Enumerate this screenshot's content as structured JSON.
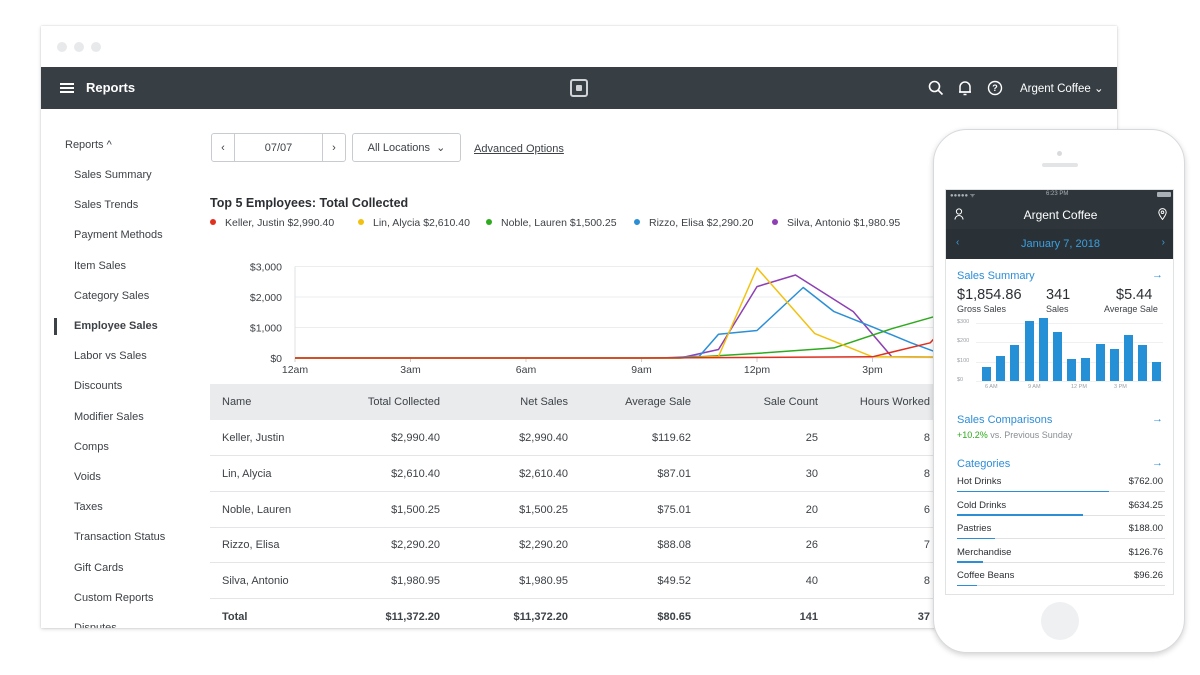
{
  "app": {
    "title": "Reports",
    "account": "Argent Coffee"
  },
  "sidebar": {
    "heading": "Reports ^",
    "items": [
      {
        "label": "Sales Summary"
      },
      {
        "label": "Sales Trends"
      },
      {
        "label": "Payment Methods"
      },
      {
        "label": "Item Sales"
      },
      {
        "label": "Category Sales"
      },
      {
        "label": "Employee Sales",
        "active": true
      },
      {
        "label": "Labor vs Sales"
      },
      {
        "label": "Discounts"
      },
      {
        "label": "Modifier Sales"
      },
      {
        "label": "Comps"
      },
      {
        "label": "Voids"
      },
      {
        "label": "Taxes"
      },
      {
        "label": "Transaction Status"
      },
      {
        "label": "Gift Cards"
      },
      {
        "label": "Custom Reports"
      },
      {
        "label": "Disputes"
      }
    ]
  },
  "filters": {
    "date": "07/07",
    "prev_glyph": "‹",
    "next_glyph": "›",
    "location": "All Locations",
    "advanced": "Advanced Options"
  },
  "chart_data": {
    "type": "line",
    "title": "Top 5 Employees: Total Collected",
    "x": [
      "12am",
      "3am",
      "6am",
      "9am",
      "12pm",
      "3pm",
      "6pm"
    ],
    "y_ticks": [
      "$3,000",
      "$2,000",
      "$1,000",
      "$0"
    ],
    "ylim": [
      0,
      3000
    ],
    "xlim_hours": [
      0,
      19.5
    ],
    "series": [
      {
        "name": "Keller, Justin $2,990.40",
        "color": "#e0301e",
        "points": [
          [
            0,
            0
          ],
          [
            9,
            0
          ],
          [
            15,
            40
          ],
          [
            16.5,
            500
          ],
          [
            18.3,
            2990
          ],
          [
            19.5,
            0
          ]
        ]
      },
      {
        "name": "Lin, Alycia $2,610.40",
        "color": "#f2c10f",
        "points": [
          [
            0,
            0
          ],
          [
            10,
            0
          ],
          [
            11,
            50
          ],
          [
            12,
            2950
          ],
          [
            13.5,
            800
          ],
          [
            15,
            40
          ],
          [
            19.5,
            0
          ]
        ]
      },
      {
        "name": "Noble, Lauren $1,500.25",
        "color": "#2faa1e",
        "points": [
          [
            0,
            0
          ],
          [
            10,
            0
          ],
          [
            12,
            150
          ],
          [
            14,
            330
          ],
          [
            15.5,
            960
          ],
          [
            17,
            1500
          ],
          [
            19,
            450
          ],
          [
            19.5,
            450
          ]
        ]
      },
      {
        "name": "Rizzo, Elisa $2,290.20",
        "color": "#2b8fd6",
        "points": [
          [
            0,
            0
          ],
          [
            9.5,
            0
          ],
          [
            10.5,
            60
          ],
          [
            11,
            780
          ],
          [
            12,
            900
          ],
          [
            13.2,
            2310
          ],
          [
            14,
            1520
          ],
          [
            15,
            1020
          ],
          [
            16,
            500
          ],
          [
            17,
            30
          ],
          [
            19.5,
            0
          ]
        ]
      },
      {
        "name": "Silva, Antonio $1,980.95",
        "color": "#8d3fb3",
        "points": [
          [
            0,
            0
          ],
          [
            10,
            0
          ],
          [
            11,
            280
          ],
          [
            12,
            2340
          ],
          [
            13,
            2720
          ],
          [
            14.5,
            1520
          ],
          [
            15.5,
            40
          ],
          [
            19.5,
            0
          ]
        ]
      }
    ]
  },
  "table": {
    "columns": [
      "Name",
      "Total Collected",
      "Net Sales",
      "Average Sale",
      "Sale Count",
      "Hours Worked"
    ],
    "rows": [
      [
        "Keller, Justin",
        "$2,990.40",
        "$2,990.40",
        "$119.62",
        "25",
        "8"
      ],
      [
        "Lin, Alycia",
        "$2,610.40",
        "$2,610.40",
        "$87.01",
        "30",
        "8"
      ],
      [
        "Noble, Lauren",
        "$1,500.25",
        "$1,500.25",
        "$75.01",
        "20",
        "6"
      ],
      [
        "Rizzo, Elisa",
        "$2,290.20",
        "$2,290.20",
        "$88.08",
        "26",
        "7"
      ],
      [
        "Silva, Antonio",
        "$1,980.95",
        "$1,980.95",
        "$49.52",
        "40",
        "8"
      ]
    ],
    "total": [
      "Total",
      "$11,372.20",
      "$11,372.20",
      "$80.65",
      "141",
      "37"
    ]
  },
  "phone": {
    "time": "6:23 PM",
    "carrier": "●●●●● ᯤ",
    "title": "Argent Coffee",
    "date": "January 7, 2018",
    "sales_summary": {
      "heading": "Sales Summary",
      "gross": "$1,854.86",
      "gross_label": "Gross Sales",
      "sales": "341",
      "sales_label": "Sales",
      "avg": "$5.44",
      "avg_label": "Average Sale",
      "y_ticks": [
        "$300",
        "$200",
        "$100",
        "$0"
      ],
      "x_ticks": [
        "6 AM",
        "9 AM",
        "12 PM",
        "3 PM"
      ],
      "bars": [
        70,
        130,
        185,
        310,
        325,
        255,
        115,
        120,
        190,
        165,
        240,
        185,
        100
      ]
    },
    "comparisons": {
      "heading": "Sales Comparisons",
      "change": "+10.2%",
      "suffix": " vs. Previous Sunday"
    },
    "categories": {
      "heading": "Categories",
      "items": [
        {
          "label": "Hot Drinks",
          "value": "$762.00",
          "share": 1.0
        },
        {
          "label": "Cold Drinks",
          "value": "$634.25",
          "share": 0.83
        },
        {
          "label": "Pastries",
          "value": "$188.00",
          "share": 0.25
        },
        {
          "label": "Merchandise",
          "value": "$126.76",
          "share": 0.17
        },
        {
          "label": "Coffee Beans",
          "value": "$96.26",
          "share": 0.13
        }
      ]
    },
    "arrow": "→"
  },
  "colors": {
    "topbar": "#373f45",
    "accent": "#2d8ed8",
    "positive": "#2faa1e"
  }
}
